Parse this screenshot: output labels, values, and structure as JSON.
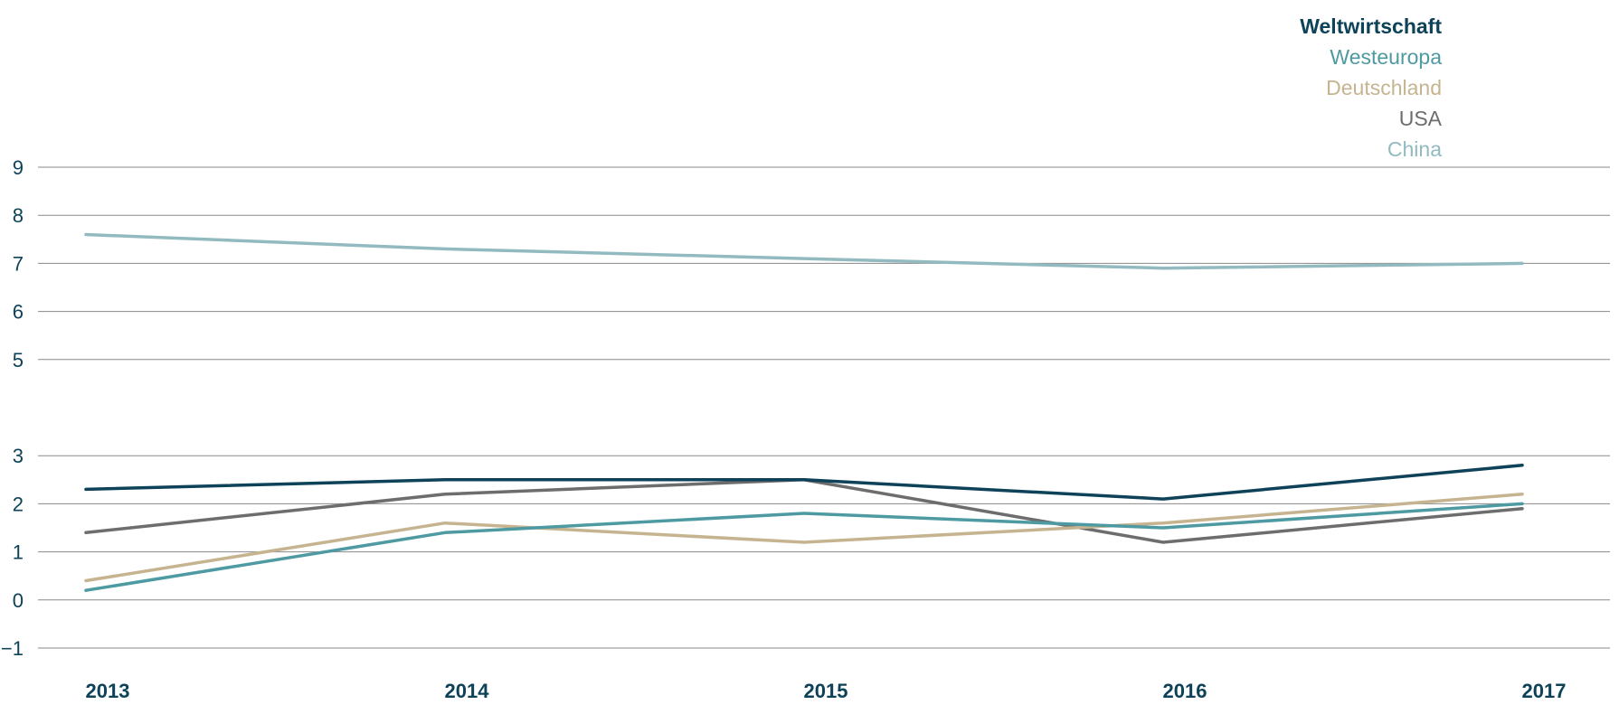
{
  "chart_data": {
    "type": "line",
    "title": "",
    "xlabel": "",
    "ylabel": "",
    "categories": [
      "2013",
      "2014",
      "2015",
      "2016",
      "2017"
    ],
    "ylim": [
      -1,
      9
    ],
    "yticks": [
      "−1",
      "0",
      "1",
      "2",
      "3",
      "5",
      "6",
      "7",
      "8",
      "9"
    ],
    "ytick_values": [
      -1,
      0,
      1,
      2,
      3,
      5,
      6,
      7,
      8,
      9
    ],
    "grid": true,
    "legend_position": "top-right",
    "series": [
      {
        "name": "Weltwirtschaft",
        "color": "#0d4258",
        "values": [
          2.3,
          2.5,
          2.5,
          2.1,
          2.8
        ]
      },
      {
        "name": "Westeuropa",
        "color": "#4e9aa2",
        "values": [
          0.2,
          1.4,
          1.8,
          1.5,
          2.0
        ]
      },
      {
        "name": "Deutschland",
        "color": "#c6b490",
        "values": [
          0.4,
          1.6,
          1.2,
          1.6,
          2.2
        ]
      },
      {
        "name": "USA",
        "color": "#6d6d6d",
        "values": [
          1.4,
          2.2,
          2.5,
          1.2,
          1.9
        ]
      },
      {
        "name": "China",
        "color": "#92bac0",
        "values": [
          7.6,
          7.3,
          7.1,
          6.9,
          7.0
        ]
      }
    ],
    "axis_text_color": "#0d4258",
    "grid_color": "#8a8a8a"
  }
}
